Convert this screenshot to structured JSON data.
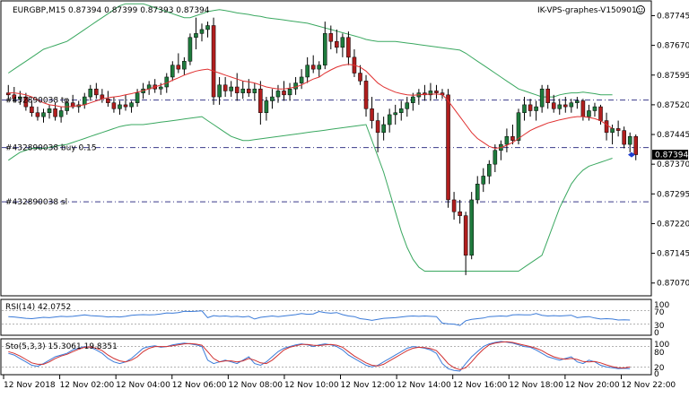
{
  "window": {
    "symbol_header": "EURGBP,M15  0.87394 0.87399 0.87393 0.87394",
    "vps_label": "IK-VPS-graphes-V150901",
    "smiley_icon": "smiley-icon"
  },
  "colors": {
    "background": "#ffffff",
    "plot_bg": "#f4f4f4",
    "bull_candle": "#1e7a3c",
    "bear_candle": "#b01e1e",
    "bollinger": "#3aa860",
    "ma": "#e03030",
    "order_line": "#3a3a8a",
    "rsi_line": "#3a7ad8",
    "stoch_main": "#3a7ad8",
    "stoch_signal": "#d03030",
    "current_price_bg": "#000000"
  },
  "orders": {
    "tp_label": "#432890038 tp",
    "buy_label": "#432890038 buy 0.15",
    "sl_label": "#432890038 sl"
  },
  "current_price": "0.87394",
  "rsi": {
    "label": "RSI(14) 42.0752",
    "levels": [
      "70",
      "30"
    ],
    "scale_top": "100",
    "scale_bottom": "0"
  },
  "stoch": {
    "label": "Sto(5,3,3) 15.3061 19.8351",
    "levels": [
      "80",
      "20"
    ],
    "scale_top": "100",
    "scale_bottom": "0"
  },
  "chart_data": {
    "type": "line",
    "price_axis": [
      "0.87745",
      "0.87670",
      "0.87595",
      "0.87520",
      "0.87445",
      "0.87370",
      "0.87295",
      "0.87220",
      "0.87145",
      "0.87070"
    ],
    "price_range": [
      0.8704,
      0.8778
    ],
    "time_labels": [
      "12 Nov 2018",
      "12 Nov 02:00",
      "12 Nov 04:00",
      "12 Nov 06:00",
      "12 Nov 08:00",
      "12 Nov 10:00",
      "12 Nov 12:00",
      "12 Nov 14:00",
      "12 Nov 16:00",
      "12 Nov 18:00",
      "12 Nov 20:00",
      "12 Nov 22:00"
    ],
    "order_levels": {
      "tp": 0.87532,
      "buy": 0.87412,
      "sl": 0.87275
    },
    "candles": [
      [
        0.8755,
        0.8757,
        0.8753,
        0.87545
      ],
      [
        0.87545,
        0.87565,
        0.87525,
        0.87535
      ],
      [
        0.87535,
        0.87555,
        0.8752,
        0.8754
      ],
      [
        0.8754,
        0.8755,
        0.87505,
        0.87515
      ],
      [
        0.87515,
        0.8753,
        0.8749,
        0.875
      ],
      [
        0.875,
        0.87515,
        0.8748,
        0.8749
      ],
      [
        0.8749,
        0.8751,
        0.87475,
        0.875
      ],
      [
        0.875,
        0.8752,
        0.87485,
        0.8751
      ],
      [
        0.8751,
        0.87525,
        0.8748,
        0.8749
      ],
      [
        0.8749,
        0.87515,
        0.87475,
        0.87505
      ],
      [
        0.87505,
        0.87535,
        0.87495,
        0.87525
      ],
      [
        0.87525,
        0.87545,
        0.8751,
        0.87515
      ],
      [
        0.87515,
        0.8753,
        0.875,
        0.8752
      ],
      [
        0.8752,
        0.8755,
        0.8751,
        0.8754
      ],
      [
        0.8754,
        0.8757,
        0.8753,
        0.8756
      ],
      [
        0.8756,
        0.87575,
        0.87535,
        0.87545
      ],
      [
        0.87545,
        0.8756,
        0.87525,
        0.87535
      ],
      [
        0.87535,
        0.87555,
        0.87515,
        0.87525
      ],
      [
        0.87525,
        0.8754,
        0.875,
        0.8751
      ],
      [
        0.8751,
        0.8753,
        0.87495,
        0.8752
      ],
      [
        0.8752,
        0.87545,
        0.87505,
        0.87515
      ],
      [
        0.87515,
        0.8753,
        0.875,
        0.87525
      ],
      [
        0.87525,
        0.8756,
        0.87515,
        0.8755
      ],
      [
        0.8755,
        0.87575,
        0.87535,
        0.8756
      ],
      [
        0.8756,
        0.8758,
        0.87545,
        0.8757
      ],
      [
        0.8757,
        0.87585,
        0.8755,
        0.8756
      ],
      [
        0.8756,
        0.87575,
        0.87545,
        0.87565
      ],
      [
        0.87565,
        0.876,
        0.8755,
        0.8759
      ],
      [
        0.8759,
        0.8763,
        0.8758,
        0.8762
      ],
      [
        0.8762,
        0.8765,
        0.876,
        0.8761
      ],
      [
        0.8761,
        0.8764,
        0.87595,
        0.8763
      ],
      [
        0.8763,
        0.877,
        0.8762,
        0.8769
      ],
      [
        0.8769,
        0.8774,
        0.8766,
        0.877
      ],
      [
        0.877,
        0.87725,
        0.8768,
        0.8771
      ],
      [
        0.8771,
        0.8773,
        0.8769,
        0.8772
      ],
      [
        0.8772,
        0.8774,
        0.8752,
        0.8754
      ],
      [
        0.8754,
        0.8759,
        0.8752,
        0.8757
      ],
      [
        0.8757,
        0.8759,
        0.8754,
        0.87555
      ],
      [
        0.87555,
        0.8758,
        0.8754,
        0.87565
      ],
      [
        0.87565,
        0.876,
        0.8753,
        0.8755
      ],
      [
        0.8755,
        0.8758,
        0.87535,
        0.8756
      ],
      [
        0.8756,
        0.87585,
        0.8754,
        0.8755
      ],
      [
        0.8755,
        0.87575,
        0.8753,
        0.8756
      ],
      [
        0.8756,
        0.8758,
        0.8747,
        0.875
      ],
      [
        0.875,
        0.8754,
        0.8748,
        0.8753
      ],
      [
        0.8753,
        0.8756,
        0.8751,
        0.8754
      ],
      [
        0.8754,
        0.8757,
        0.87525,
        0.87555
      ],
      [
        0.87555,
        0.8758,
        0.8753,
        0.87545
      ],
      [
        0.87545,
        0.87575,
        0.8753,
        0.8756
      ],
      [
        0.8756,
        0.8759,
        0.87545,
        0.87575
      ],
      [
        0.87575,
        0.8761,
        0.8756,
        0.8759
      ],
      [
        0.8759,
        0.8764,
        0.87575,
        0.8762
      ],
      [
        0.8762,
        0.87645,
        0.876,
        0.8761
      ],
      [
        0.8761,
        0.8763,
        0.8759,
        0.8762
      ],
      [
        0.8762,
        0.8773,
        0.8761,
        0.877
      ],
      [
        0.877,
        0.8772,
        0.8766,
        0.8768
      ],
      [
        0.8768,
        0.8771,
        0.8765,
        0.87665
      ],
      [
        0.87665,
        0.877,
        0.8764,
        0.8769
      ],
      [
        0.8769,
        0.87705,
        0.8762,
        0.8764
      ],
      [
        0.8764,
        0.8766,
        0.8759,
        0.876
      ],
      [
        0.876,
        0.8762,
        0.8757,
        0.8758
      ],
      [
        0.8758,
        0.87595,
        0.8749,
        0.8751
      ],
      [
        0.8751,
        0.8754,
        0.8746,
        0.8748
      ],
      [
        0.8748,
        0.875,
        0.874,
        0.8745
      ],
      [
        0.8745,
        0.8749,
        0.8743,
        0.8747
      ],
      [
        0.8747,
        0.8751,
        0.8745,
        0.87495
      ],
      [
        0.87495,
        0.8752,
        0.8747,
        0.875
      ],
      [
        0.875,
        0.8753,
        0.8748,
        0.8751
      ],
      [
        0.8751,
        0.8754,
        0.8749,
        0.87525
      ],
      [
        0.87525,
        0.8755,
        0.87505,
        0.8754
      ],
      [
        0.8754,
        0.8756,
        0.8752,
        0.8755
      ],
      [
        0.8755,
        0.8757,
        0.8753,
        0.87545
      ],
      [
        0.87545,
        0.87575,
        0.8753,
        0.87555
      ],
      [
        0.87555,
        0.8757,
        0.87535,
        0.8755
      ],
      [
        0.8755,
        0.8756,
        0.87535,
        0.87545
      ],
      [
        0.87545,
        0.8756,
        0.8726,
        0.8728
      ],
      [
        0.8728,
        0.873,
        0.8723,
        0.8725
      ],
      [
        0.8725,
        0.8728,
        0.8722,
        0.8724
      ],
      [
        0.8724,
        0.8725,
        0.8709,
        0.8714
      ],
      [
        0.8714,
        0.873,
        0.8713,
        0.8728
      ],
      [
        0.8728,
        0.8734,
        0.8727,
        0.8732
      ],
      [
        0.8732,
        0.8736,
        0.873,
        0.8734
      ],
      [
        0.8734,
        0.8738,
        0.8732,
        0.8737
      ],
      [
        0.8737,
        0.8742,
        0.8735,
        0.87405
      ],
      [
        0.87405,
        0.8743,
        0.8738,
        0.8742
      ],
      [
        0.8742,
        0.8746,
        0.874,
        0.8744
      ],
      [
        0.8744,
        0.8747,
        0.8742,
        0.8743
      ],
      [
        0.8743,
        0.8751,
        0.8742,
        0.875
      ],
      [
        0.875,
        0.8754,
        0.8748,
        0.8752
      ],
      [
        0.8752,
        0.87535,
        0.8749,
        0.87505
      ],
      [
        0.87505,
        0.8753,
        0.8748,
        0.87515
      ],
      [
        0.87515,
        0.8757,
        0.875,
        0.8756
      ],
      [
        0.8756,
        0.8757,
        0.8751,
        0.87525
      ],
      [
        0.87525,
        0.87545,
        0.875,
        0.8751
      ],
      [
        0.8751,
        0.87535,
        0.87495,
        0.8752
      ],
      [
        0.8752,
        0.8754,
        0.875,
        0.87515
      ],
      [
        0.87515,
        0.87535,
        0.875,
        0.87525
      ],
      [
        0.87525,
        0.8754,
        0.8751,
        0.8753
      ],
      [
        0.8753,
        0.87535,
        0.8748,
        0.8749
      ],
      [
        0.8749,
        0.8752,
        0.8748,
        0.87505
      ],
      [
        0.87505,
        0.87525,
        0.8749,
        0.87515
      ],
      [
        0.87515,
        0.8752,
        0.8747,
        0.8748
      ],
      [
        0.8748,
        0.875,
        0.8743,
        0.8745
      ],
      [
        0.8745,
        0.8747,
        0.8742,
        0.8746
      ],
      [
        0.8746,
        0.8748,
        0.8744,
        0.87455
      ],
      [
        0.87455,
        0.87465,
        0.8741,
        0.8742
      ],
      [
        0.8742,
        0.8745,
        0.874,
        0.8744
      ],
      [
        0.8744,
        0.87445,
        0.8738,
        0.87394
      ]
    ],
    "bb_upper": [
      0.876,
      0.8761,
      0.8762,
      0.8763,
      0.8764,
      0.8765,
      0.8766,
      0.87665,
      0.8767,
      0.87675,
      0.8768,
      0.8769,
      0.877,
      0.8771,
      0.8772,
      0.8773,
      0.8774,
      0.8775,
      0.8776,
      0.8777,
      0.87775,
      0.87775,
      0.87775,
      0.87775,
      0.8777,
      0.87765,
      0.8776,
      0.87755,
      0.8775,
      0.87745,
      0.8774,
      0.8774,
      0.87745,
      0.8775,
      0.87755,
      0.87758,
      0.8776,
      0.87758,
      0.87755,
      0.87752,
      0.8775,
      0.87748,
      0.87745,
      0.87743,
      0.8774,
      0.87738,
      0.87736,
      0.87734,
      0.87732,
      0.8773,
      0.87728,
      0.87726,
      0.87722,
      0.87718,
      0.87714,
      0.8771,
      0.87706,
      0.87702,
      0.87698,
      0.87694,
      0.8769,
      0.87685,
      0.87682,
      0.8768,
      0.8768,
      0.8768,
      0.8768,
      0.87678,
      0.87676,
      0.87674,
      0.87672,
      0.8767,
      0.87668,
      0.87666,
      0.87664,
      0.87662,
      0.8766,
      0.87658,
      0.8765,
      0.8764,
      0.8763,
      0.8762,
      0.8761,
      0.876,
      0.8759,
      0.8758,
      0.8757,
      0.8756,
      0.87555,
      0.8755,
      0.87545,
      0.8754,
      0.8754,
      0.8754,
      0.87545,
      0.87548,
      0.8755,
      0.8755,
      0.87552,
      0.8755,
      0.87548,
      0.87545,
      0.87545,
      0.87545
    ],
    "bb_lower": [
      0.8738,
      0.8739,
      0.874,
      0.87405,
      0.8741,
      0.8741,
      0.8741,
      0.87412,
      0.87415,
      0.87418,
      0.8742,
      0.87425,
      0.8743,
      0.87435,
      0.8744,
      0.87445,
      0.8745,
      0.87455,
      0.8746,
      0.87465,
      0.87468,
      0.8747,
      0.8747,
      0.8747,
      0.87472,
      0.87474,
      0.87476,
      0.87478,
      0.8748,
      0.87482,
      0.87484,
      0.87486,
      0.87488,
      0.8749,
      0.8748,
      0.8747,
      0.8746,
      0.8745,
      0.8744,
      0.87435,
      0.8743,
      0.8743,
      0.87432,
      0.87434,
      0.87436,
      0.87438,
      0.8744,
      0.87442,
      0.87444,
      0.87446,
      0.87448,
      0.8745,
      0.87452,
      0.87454,
      0.87456,
      0.87458,
      0.8746,
      0.87462,
      0.87464,
      0.87466,
      0.87468,
      0.8747,
      0.8743,
      0.8739,
      0.8735,
      0.873,
      0.8725,
      0.872,
      0.8716,
      0.8713,
      0.8711,
      0.871,
      0.871,
      0.871,
      0.871,
      0.871,
      0.871,
      0.871,
      0.871,
      0.871,
      0.871,
      0.871,
      0.871,
      0.871,
      0.871,
      0.871,
      0.871,
      0.871,
      0.8711,
      0.8712,
      0.8713,
      0.8714,
      0.8718,
      0.8722,
      0.8726,
      0.8729,
      0.8732,
      0.8734,
      0.87355,
      0.87365,
      0.8737,
      0.87375,
      0.8738,
      0.87385
    ],
    "ma": [
      0.8755,
      0.8755,
      0.87548,
      0.87545,
      0.8754,
      0.87532,
      0.87525,
      0.8752,
      0.87518,
      0.87515,
      0.87515,
      0.87516,
      0.87518,
      0.8752,
      0.87525,
      0.8753,
      0.87535,
      0.87538,
      0.8754,
      0.87542,
      0.87545,
      0.87548,
      0.87552,
      0.87556,
      0.8756,
      0.87565,
      0.8757,
      0.87575,
      0.87582,
      0.87588,
      0.87595,
      0.876,
      0.87605,
      0.87608,
      0.8761,
      0.87605,
      0.876,
      0.87595,
      0.8759,
      0.87585,
      0.8758,
      0.87578,
      0.87575,
      0.8757,
      0.87565,
      0.87562,
      0.8756,
      0.8756,
      0.87562,
      0.87565,
      0.8757,
      0.87578,
      0.87585,
      0.8759,
      0.876,
      0.87608,
      0.87615,
      0.8762,
      0.87622,
      0.8762,
      0.87615,
      0.87605,
      0.8759,
      0.87575,
      0.87565,
      0.87558,
      0.87552,
      0.87548,
      0.87545,
      0.87544,
      0.87545,
      0.87546,
      0.87547,
      0.87547,
      0.87546,
      0.8753,
      0.8751,
      0.8749,
      0.8747,
      0.8745,
      0.87435,
      0.87425,
      0.87415,
      0.8741,
      0.87412,
      0.87418,
      0.87425,
      0.87435,
      0.87445,
      0.87455,
      0.87462,
      0.87468,
      0.87474,
      0.87478,
      0.87482,
      0.87485,
      0.87488,
      0.8749,
      0.8749,
      0.87488,
      0.87485,
      0.8748,
      0.8747,
      0.8746
    ],
    "rsi": [
      52,
      51,
      49,
      47,
      46,
      48,
      50,
      49,
      51,
      53,
      52,
      53,
      55,
      57,
      55,
      54,
      53,
      51,
      52,
      51,
      53,
      56,
      57,
      58,
      57,
      58,
      60,
      63,
      62,
      64,
      68,
      67,
      68,
      69,
      49,
      55,
      53,
      54,
      52,
      53,
      51,
      53,
      45,
      50,
      52,
      54,
      52,
      54,
      56,
      58,
      61,
      59,
      60,
      67,
      64,
      62,
      64,
      58,
      54,
      52,
      46,
      44,
      41,
      44,
      47,
      48,
      49,
      51,
      53,
      54,
      53,
      54,
      53,
      52,
      33,
      31,
      30,
      26,
      40,
      44,
      46,
      48,
      52,
      53,
      54,
      53,
      57,
      58,
      57,
      57,
      61,
      56,
      54,
      55,
      54,
      55,
      56,
      49,
      51,
      52,
      48,
      45,
      46,
      45,
      42,
      43,
      42
    ],
    "stoch_main": [
      60,
      55,
      45,
      35,
      25,
      22,
      30,
      40,
      50,
      55,
      60,
      70,
      75,
      80,
      78,
      70,
      60,
      45,
      35,
      30,
      35,
      45,
      60,
      75,
      80,
      82,
      78,
      80,
      85,
      88,
      90,
      88,
      85,
      80,
      40,
      30,
      35,
      40,
      35,
      30,
      40,
      50,
      30,
      25,
      35,
      50,
      65,
      75,
      80,
      85,
      88,
      85,
      80,
      85,
      88,
      85,
      80,
      70,
      55,
      45,
      35,
      25,
      20,
      25,
      35,
      45,
      55,
      65,
      75,
      80,
      78,
      75,
      70,
      60,
      30,
      15,
      10,
      8,
      30,
      50,
      65,
      80,
      88,
      92,
      95,
      93,
      90,
      85,
      80,
      78,
      70,
      60,
      50,
      45,
      40,
      45,
      50,
      35,
      30,
      40,
      35,
      25,
      20,
      18,
      15,
      16,
      15
    ],
    "stoch_signal": [
      65,
      60,
      52,
      42,
      32,
      28,
      28,
      35,
      45,
      52,
      57,
      65,
      72,
      78,
      79,
      75,
      68,
      55,
      45,
      38,
      35,
      40,
      50,
      65,
      75,
      80,
      80,
      80,
      82,
      85,
      88,
      89,
      87,
      84,
      65,
      45,
      35,
      38,
      38,
      35,
      38,
      45,
      40,
      32,
      30,
      40,
      55,
      70,
      78,
      82,
      86,
      86,
      84,
      83,
      85,
      86,
      84,
      78,
      65,
      52,
      42,
      32,
      25,
      23,
      28,
      38,
      48,
      58,
      68,
      75,
      78,
      77,
      74,
      68,
      50,
      30,
      18,
      12,
      18,
      35,
      55,
      72,
      85,
      90,
      93,
      94,
      92,
      88,
      84,
      80,
      75,
      68,
      58,
      50,
      45,
      43,
      45,
      42,
      36,
      35,
      36,
      32,
      26,
      21,
      18,
      17,
      20
    ]
  }
}
